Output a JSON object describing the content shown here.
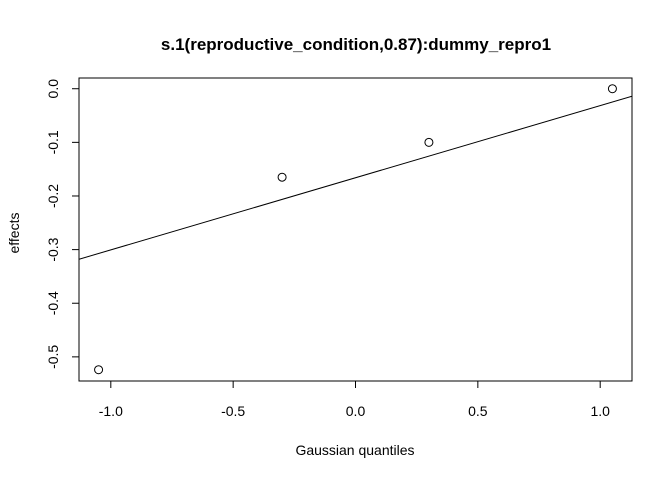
{
  "chart_data": {
    "type": "scatter",
    "title": "s.1(reproductive_condition,0.87):dummy_repro1",
    "xlabel": "Gaussian quantiles",
    "ylabel": "effects",
    "xlim": [
      -1.13,
      1.13
    ],
    "ylim": [
      -0.545,
      0.02
    ],
    "x_ticks": [
      -1.0,
      -0.5,
      0.0,
      0.5,
      1.0
    ],
    "x_tick_labels": [
      "-1.0",
      "-0.5",
      "0.0",
      "0.5",
      "1.0"
    ],
    "y_ticks": [
      0.0,
      -0.1,
      -0.2,
      -0.3,
      -0.4,
      -0.5
    ],
    "y_tick_labels": [
      "0.0",
      "-0.1",
      "-0.2",
      "-0.3",
      "-0.4",
      "-0.5"
    ],
    "points": [
      {
        "x": -1.05,
        "y": -0.524
      },
      {
        "x": -0.3,
        "y": -0.165
      },
      {
        "x": 0.3,
        "y": -0.1
      },
      {
        "x": 1.05,
        "y": 0.0
      }
    ],
    "reference_line": {
      "intercept": -0.166,
      "slope": 0.1345
    },
    "colors": {
      "line": "#000000",
      "points": "#000000",
      "background": "#ffffff"
    }
  }
}
